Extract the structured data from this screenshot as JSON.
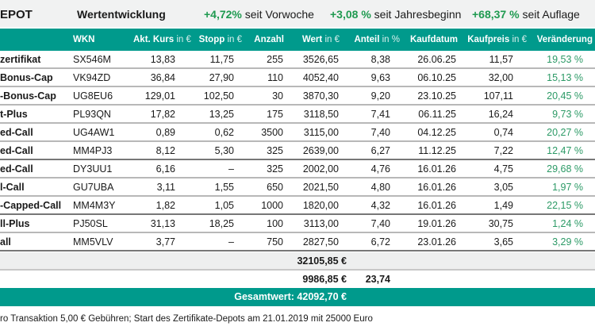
{
  "header": {
    "title": "EPOT",
    "subtitle": "Wertentwicklung",
    "perf": [
      {
        "value": "+4,72%",
        "label": "seit Vorwoche"
      },
      {
        "value": "+3,08 %",
        "label": "seit Jahresbeginn"
      },
      {
        "value": "+68,37 %",
        "label": "seit Auflage"
      }
    ]
  },
  "columns": [
    {
      "label": "",
      "unit": ""
    },
    {
      "label": "WKN",
      "unit": ""
    },
    {
      "label": "Akt. Kurs",
      "unit": " in €"
    },
    {
      "label": "Stopp",
      "unit": " in €"
    },
    {
      "label": "Anzahl",
      "unit": ""
    },
    {
      "label": "Wert",
      "unit": " in €"
    },
    {
      "label": "Anteil",
      "unit": " in %"
    },
    {
      "label": "Kaufdatum",
      "unit": ""
    },
    {
      "label": "Kaufpreis",
      "unit": " in €"
    },
    {
      "label": "Veränderung",
      "unit": ""
    }
  ],
  "rows": [
    [
      "zertifikat",
      "SX546M",
      "13,83",
      "11,75",
      "255",
      "3526,65",
      "8,38",
      "26.06.25",
      "11,57",
      "19,53 %"
    ],
    [
      "Bonus-Cap",
      "VK94ZD",
      "36,84",
      "27,90",
      "110",
      "4052,40",
      "9,63",
      "06.10.25",
      "32,00",
      "15,13 %"
    ],
    [
      "-Bonus-Cap",
      "UG8EU6",
      "129,01",
      "102,50",
      "30",
      "3870,30",
      "9,20",
      "23.10.25",
      "107,11",
      "20,45 %"
    ],
    [
      "t-Plus",
      "PL93QN",
      "17,82",
      "13,25",
      "175",
      "3118,50",
      "7,41",
      "06.11.25",
      "16,24",
      "9,73 %"
    ],
    [
      "ed-Call",
      "UG4AW1",
      "0,89",
      "0,62",
      "3500",
      "3115,00",
      "7,40",
      "04.12.25",
      "0,74",
      "20,27 %"
    ],
    [
      "ed-Call",
      "MM4PJ3",
      "8,12",
      "5,30",
      "325",
      "2639,00",
      "6,27",
      "11.12.25",
      "7,22",
      "12,47 %"
    ],
    [
      "ed-Call",
      "DY3UU1",
      "6,16",
      "–",
      "325",
      "2002,00",
      "4,76",
      "16.01.26",
      "4,75",
      "29,68 %"
    ],
    [
      "l-Call",
      "GU7UBA",
      "3,11",
      "1,55",
      "650",
      "2021,50",
      "4,80",
      "16.01.26",
      "3,05",
      "1,97 %"
    ],
    [
      "-Capped-Call",
      "MM4M3Y",
      "1,82",
      "1,05",
      "1000",
      "1820,00",
      "4,32",
      "16.01.26",
      "1,49",
      "22,15 %"
    ],
    [
      "ll-Plus",
      "PJ50SL",
      "31,13",
      "18,25",
      "100",
      "3113,00",
      "7,40",
      "19.01.26",
      "30,75",
      "1,24 %"
    ],
    [
      "all",
      "MM5VLV",
      "3,77",
      "–",
      "750",
      "2827,50",
      "6,72",
      "23.01.26",
      "3,65",
      "3,29 %"
    ]
  ],
  "summary": {
    "sum": "32105,85 €",
    "cash": "9986,85 €",
    "cash_share": "23,74",
    "total": "Gesamtwert: 42092,70 €"
  },
  "footnote": "ro Transaktion 5,00 € Gebühren; Start des Zertifikate-Depots am 21.01.2019 mit 25000 Euro",
  "colors": {
    "teal": "#009a8c",
    "green": "#1f9a50"
  }
}
